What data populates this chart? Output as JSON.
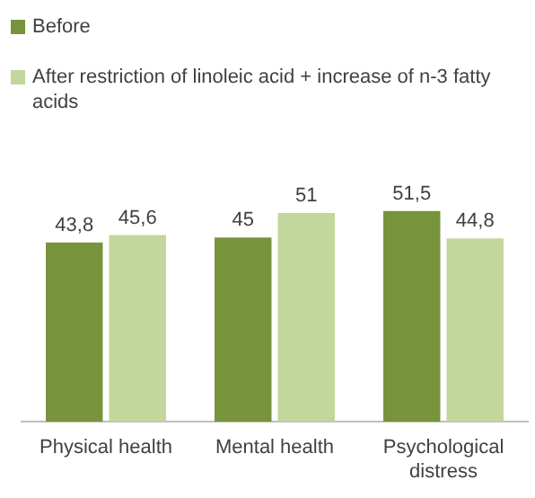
{
  "chart_data": {
    "type": "bar",
    "categories": [
      "Physical health",
      "Mental health",
      "Psychological distress"
    ],
    "series": [
      {
        "name": "Before",
        "color": "#77933c",
        "values": [
          43.8,
          45,
          51.5
        ],
        "value_labels": [
          "43,8",
          "45",
          "51,5"
        ]
      },
      {
        "name": "After restriction of linoleic acid + increase of n-3 fatty acids",
        "color": "#c3d69b",
        "values": [
          45.6,
          51,
          44.8
        ],
        "value_labels": [
          "45,6",
          "51",
          "44,8"
        ]
      }
    ],
    "legend": "top",
    "grid": false,
    "relative": false
  }
}
